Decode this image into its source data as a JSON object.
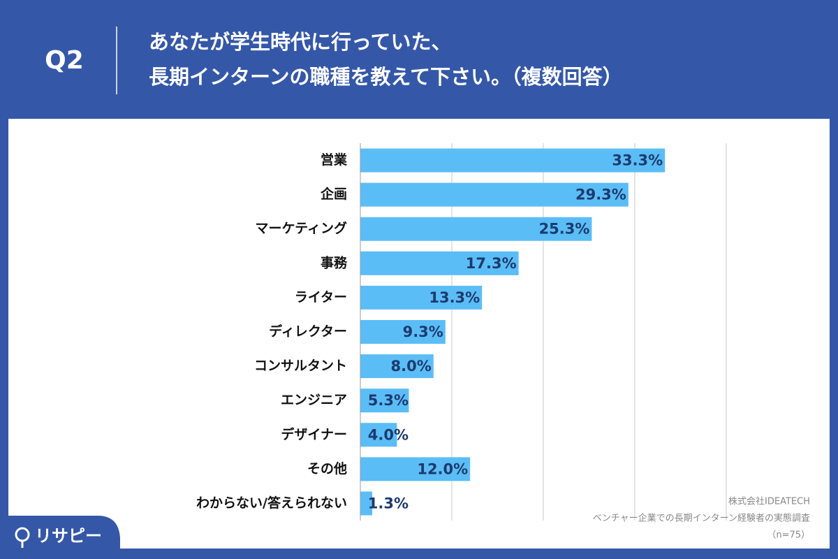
{
  "header": {
    "badge": "Q2",
    "title_lines": [
      "あなたが学生時代に行っていた、",
      "長期インターンの職種を教えて下さい。（複数回答）"
    ]
  },
  "chart_data": {
    "type": "barh",
    "categories": [
      "営業",
      "企画",
      "マーケティング",
      "事務",
      "ライター",
      "ディレクター",
      "コンサルタント",
      "エンジニア",
      "デザイナー",
      "その他",
      "わからない/答えられない"
    ],
    "values": [
      33.3,
      29.3,
      25.3,
      17.3,
      13.3,
      9.3,
      8.0,
      5.3,
      4.0,
      12.0,
      1.3
    ],
    "value_labels": [
      "33.3%",
      "29.3%",
      "25.3%",
      "17.3%",
      "13.3%",
      "9.3%",
      "8.0%",
      "5.3%",
      "4.0%",
      "12.0%",
      "1.3%"
    ],
    "color": "#5bbdf6",
    "xlim": [
      0,
      40
    ],
    "xticks": [
      0,
      10,
      20,
      30,
      40
    ],
    "grid": true
  },
  "footnote": [
    "株式会社IDEATECH",
    "ベンチャー企業での長期インターン経験者の実態調査",
    "（n=75）"
  ],
  "brand": "リサピー"
}
